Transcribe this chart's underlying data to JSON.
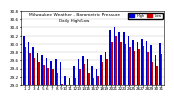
{
  "title": "Milwaukee Weather - Barometric Pressure",
  "subtitle": "Daily High/Low",
  "bar_width": 0.35,
  "high_color": "#0000cc",
  "low_color": "#cc0000",
  "background_color": "#ffffff",
  "ylim": [
    29.0,
    30.8
  ],
  "yticks": [
    29.0,
    29.2,
    29.4,
    29.6,
    29.8,
    30.0,
    30.2,
    30.4,
    30.6,
    30.8
  ],
  "days": [
    "1",
    "2",
    "3",
    "4",
    "5",
    "6",
    "7",
    "8",
    "9",
    "10",
    "11",
    "12",
    "13",
    "14",
    "15",
    "16",
    "17",
    "18",
    "19",
    "20",
    "21",
    "22",
    "23",
    "24",
    "25",
    "26",
    "27",
    "28",
    "29",
    "30",
    "31"
  ],
  "highs": [
    30.18,
    30.04,
    29.92,
    29.78,
    29.72,
    29.65,
    29.58,
    29.62,
    29.55,
    29.22,
    29.18,
    29.45,
    29.62,
    29.7,
    29.62,
    29.45,
    29.38,
    29.72,
    29.8,
    30.35,
    30.42,
    30.3,
    30.28,
    30.18,
    30.1,
    30.05,
    30.12,
    30.08,
    29.98,
    29.72,
    30.02
  ],
  "lows": [
    29.92,
    29.78,
    29.65,
    29.55,
    29.48,
    29.42,
    29.38,
    29.3,
    29.02,
    29.0,
    28.98,
    29.18,
    29.38,
    29.52,
    29.3,
    29.18,
    29.22,
    29.55,
    29.62,
    30.05,
    30.18,
    30.05,
    30.0,
    29.92,
    29.82,
    29.88,
    29.95,
    29.8,
    29.55,
    29.45,
    29.75
  ]
}
